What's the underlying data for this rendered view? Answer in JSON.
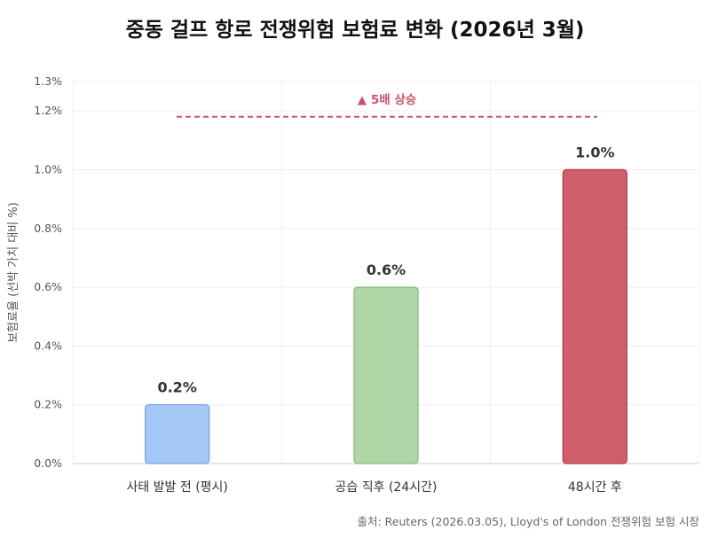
{
  "chart_data": {
    "type": "bar",
    "title": "중동 걸프 항로 전쟁위험 보험료 변화 (2026년 3월)",
    "ylabel": "보험료율 (선박 가치 대비 %)",
    "xlabel": "",
    "ylim": [
      0,
      1.3
    ],
    "yticks": [
      0,
      0.2,
      0.4,
      0.6,
      0.8,
      1.0,
      1.2,
      1.3
    ],
    "ytick_labels": [
      "0.0%",
      "0.2%",
      "0.4%",
      "0.6%",
      "0.8%",
      "1.0%",
      "1.2%",
      "1.3%"
    ],
    "categories": [
      "사태 발발 전 (평시)",
      "공습 직후 (24시간)",
      "48시간 후"
    ],
    "values": [
      0.2,
      0.6,
      1.0
    ],
    "data_labels": [
      "0.2%",
      "0.6%",
      "1.0%"
    ],
    "colors": [
      "#a4c8f5",
      "#b0d6a8",
      "#d15f6b"
    ],
    "border_colors": [
      "#7aa7e0",
      "#86bd7d",
      "#b2404c"
    ],
    "grid": true,
    "annotation": {
      "text": "▲ 5배 상승",
      "y": 1.18,
      "color": "#c9556a",
      "style": "dashed"
    }
  },
  "source": "출처: Reuters (2026.03.05), Lloyd's of London 전쟁위험 보험 시장"
}
